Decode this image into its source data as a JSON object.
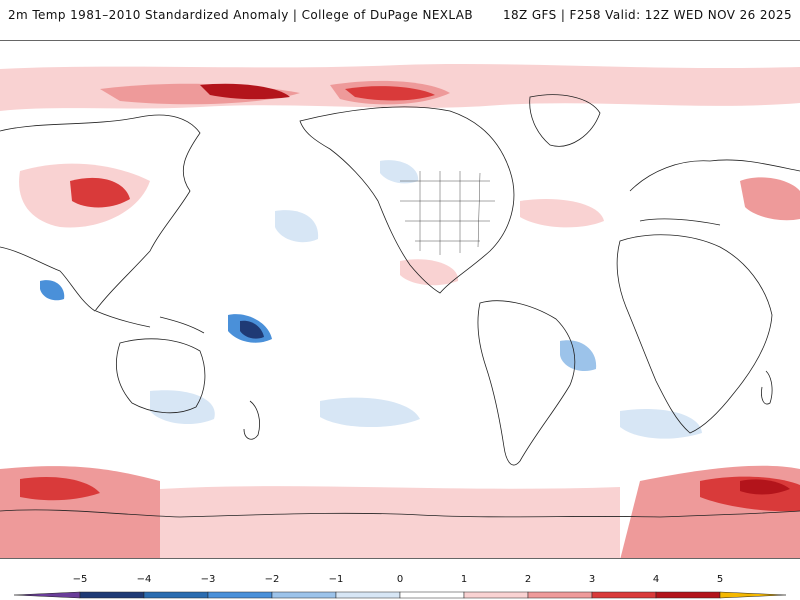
{
  "header": {
    "title": "2m Temp 1981–2010 Standardized Anomaly | College of DuPage NEXLAB",
    "run_info": "18Z GFS | F258 Valid: 12Z WED NOV 26 2025"
  },
  "legend": {
    "ticks": [
      "−5",
      "−4",
      "−3",
      "−2",
      "−1",
      "0",
      "1",
      "2",
      "3",
      "4",
      "5"
    ],
    "colors": {
      "below_min": "#6a3d9a",
      "m5_m4": "#1f3a75",
      "m4_m3": "#2b6cb0",
      "m3_m2": "#4a90d9",
      "m2_m1": "#9cc3ea",
      "m1_0": "#d7e6f5",
      "zero_1": "#ffffff",
      "p1_p2": "#f9d2d2",
      "p2_p3": "#ee9a9a",
      "p3_p4": "#d93a3a",
      "p4_p5": "#b3141b",
      "above_max": "#f5b800"
    }
  },
  "map": {
    "projection": "global equirectangular, centered on the Pacific",
    "ocean_color": "#ffffff",
    "coastline_color": "#222222"
  }
}
